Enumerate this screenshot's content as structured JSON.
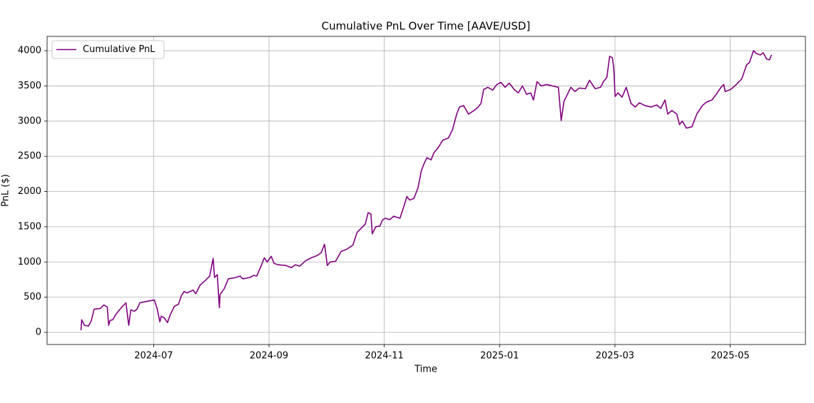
{
  "chart_data": {
    "type": "line",
    "title": "Cumulative PnL Over Time [AAVE/USD]",
    "x_label": "Time",
    "y_label": "PnL ($)",
    "x": [
      2024.395,
      2024.396,
      2024.4,
      2024.406,
      2024.41,
      2024.414,
      2024.423,
      2024.428,
      2024.433,
      2024.435,
      2024.437,
      2024.441,
      2024.445,
      2024.449,
      2024.454,
      2024.46,
      2024.464,
      2024.467,
      2024.472,
      2024.476,
      2024.48,
      2024.49,
      2024.501,
      2024.505,
      2024.509,
      2024.511,
      2024.515,
      2024.52,
      2024.524,
      2024.53,
      2024.536,
      2024.54,
      2024.544,
      2024.548,
      2024.557,
      2024.561,
      2024.567,
      2024.575,
      2024.581,
      2024.586,
      2024.588,
      2024.592,
      2024.595,
      2024.596,
      2024.602,
      2024.608,
      2024.619,
      2024.625,
      2024.629,
      2024.639,
      2024.645,
      2024.649,
      2024.656,
      2024.66,
      2024.664,
      2024.67,
      2024.674,
      2024.68,
      2024.691,
      2024.699,
      2024.705,
      2024.711,
      2024.72,
      2024.728,
      2024.736,
      2024.742,
      2024.747,
      2024.751,
      2024.755,
      2024.763,
      2024.771,
      2024.779,
      2024.788,
      2024.794,
      2024.8,
      2024.806,
      2024.81,
      2024.814,
      2024.816,
      2024.821,
      2024.827,
      2024.831,
      2024.835,
      2024.841,
      2024.847,
      2024.856,
      2024.862,
      2024.866,
      2024.87,
      2024.876,
      2024.882,
      2024.887,
      2024.891,
      2024.895,
      2024.901,
      2024.905,
      2024.911,
      2024.918,
      2024.926,
      2024.932,
      2024.938,
      2024.942,
      2024.948,
      2024.955,
      2024.963,
      2024.969,
      2024.973,
      2024.977,
      2024.983,
      2024.99,
      2024.996,
      2025.002,
      2025.008,
      2025.014,
      2025.021,
      2025.027,
      2025.033,
      2025.039,
      2025.045,
      2025.049,
      2025.054,
      2025.06,
      2025.068,
      2025.076,
      2025.085,
      2025.089,
      2025.093,
      2025.099,
      2025.103,
      2025.109,
      2025.115,
      2025.124,
      2025.13,
      2025.138,
      2025.146,
      2025.15,
      2025.155,
      2025.159,
      2025.163,
      2025.165,
      2025.167,
      2025.171,
      2025.177,
      2025.183,
      2025.19,
      2025.196,
      2025.202,
      2025.21,
      2025.219,
      2025.227,
      2025.233,
      2025.239,
      2025.243,
      2025.249,
      2025.256,
      2025.26,
      2025.264,
      2025.27,
      2025.278,
      2025.285,
      2025.293,
      2025.299,
      2025.307,
      2025.313,
      2025.32,
      2025.324,
      2025.326,
      2025.334,
      2025.34,
      2025.35,
      2025.357,
      2025.361,
      2025.367,
      2025.371,
      2025.377,
      2025.381,
      2025.386,
      2025.39,
      2025.393
    ],
    "series": [
      {
        "name": "Cumulative PnL",
        "color": "#800080",
        "values": [
          30,
          180,
          100,
          90,
          170,
          330,
          340,
          390,
          360,
          100,
          170,
          180,
          250,
          300,
          360,
          420,
          100,
          320,
          300,
          330,
          420,
          440,
          460,
          340,
          150,
          230,
          210,
          140,
          250,
          370,
          400,
          520,
          580,
          560,
          600,
          550,
          670,
          740,
          800,
          1050,
          780,
          820,
          350,
          540,
          620,
          760,
          780,
          800,
          760,
          780,
          810,
          800,
          960,
          1060,
          1000,
          1080,
          980,
          960,
          950,
          920,
          960,
          940,
          1020,
          1060,
          1090,
          1130,
          1250,
          950,
          1000,
          1010,
          1150,
          1180,
          1240,
          1420,
          1480,
          1540,
          1700,
          1680,
          1400,
          1500,
          1510,
          1600,
          1620,
          1600,
          1650,
          1620,
          1800,
          1930,
          1880,
          1900,
          2050,
          2300,
          2400,
          2480,
          2450,
          2550,
          2620,
          2730,
          2760,
          2880,
          3100,
          3200,
          3220,
          3100,
          3150,
          3200,
          3250,
          3450,
          3480,
          3440,
          3520,
          3550,
          3480,
          3540,
          3450,
          3400,
          3500,
          3380,
          3400,
          3300,
          3560,
          3500,
          3520,
          3500,
          3480,
          3010,
          3280,
          3400,
          3480,
          3420,
          3470,
          3460,
          3580,
          3460,
          3480,
          3560,
          3620,
          3920,
          3900,
          3750,
          3350,
          3400,
          3340,
          3480,
          3250,
          3200,
          3260,
          3220,
          3200,
          3230,
          3180,
          3300,
          3100,
          3150,
          3100,
          2950,
          3000,
          2900,
          2920,
          3100,
          3220,
          3270,
          3300,
          3380,
          3480,
          3520,
          3420,
          3450,
          3500,
          3600,
          3800,
          3830,
          4000,
          3960,
          3940,
          3970,
          3880,
          3870,
          3940
        ]
      }
    ],
    "xlim": [
      2024.346,
      2025.442
    ],
    "xticks": [
      {
        "value": 2024.5,
        "label": "2024-07"
      },
      {
        "value": 2024.6667,
        "label": "2024-09"
      },
      {
        "value": 2024.8333,
        "label": "2024-11"
      },
      {
        "value": 2025.0,
        "label": "2025-01"
      },
      {
        "value": 2025.1667,
        "label": "2025-03"
      },
      {
        "value": 2025.3333,
        "label": "2025-05"
      }
    ],
    "ylim": [
      -172,
      4203
    ],
    "yticks": [
      0,
      500,
      1000,
      1500,
      2000,
      2500,
      3000,
      3500,
      4000
    ],
    "grid": true,
    "legend": "upper left"
  }
}
